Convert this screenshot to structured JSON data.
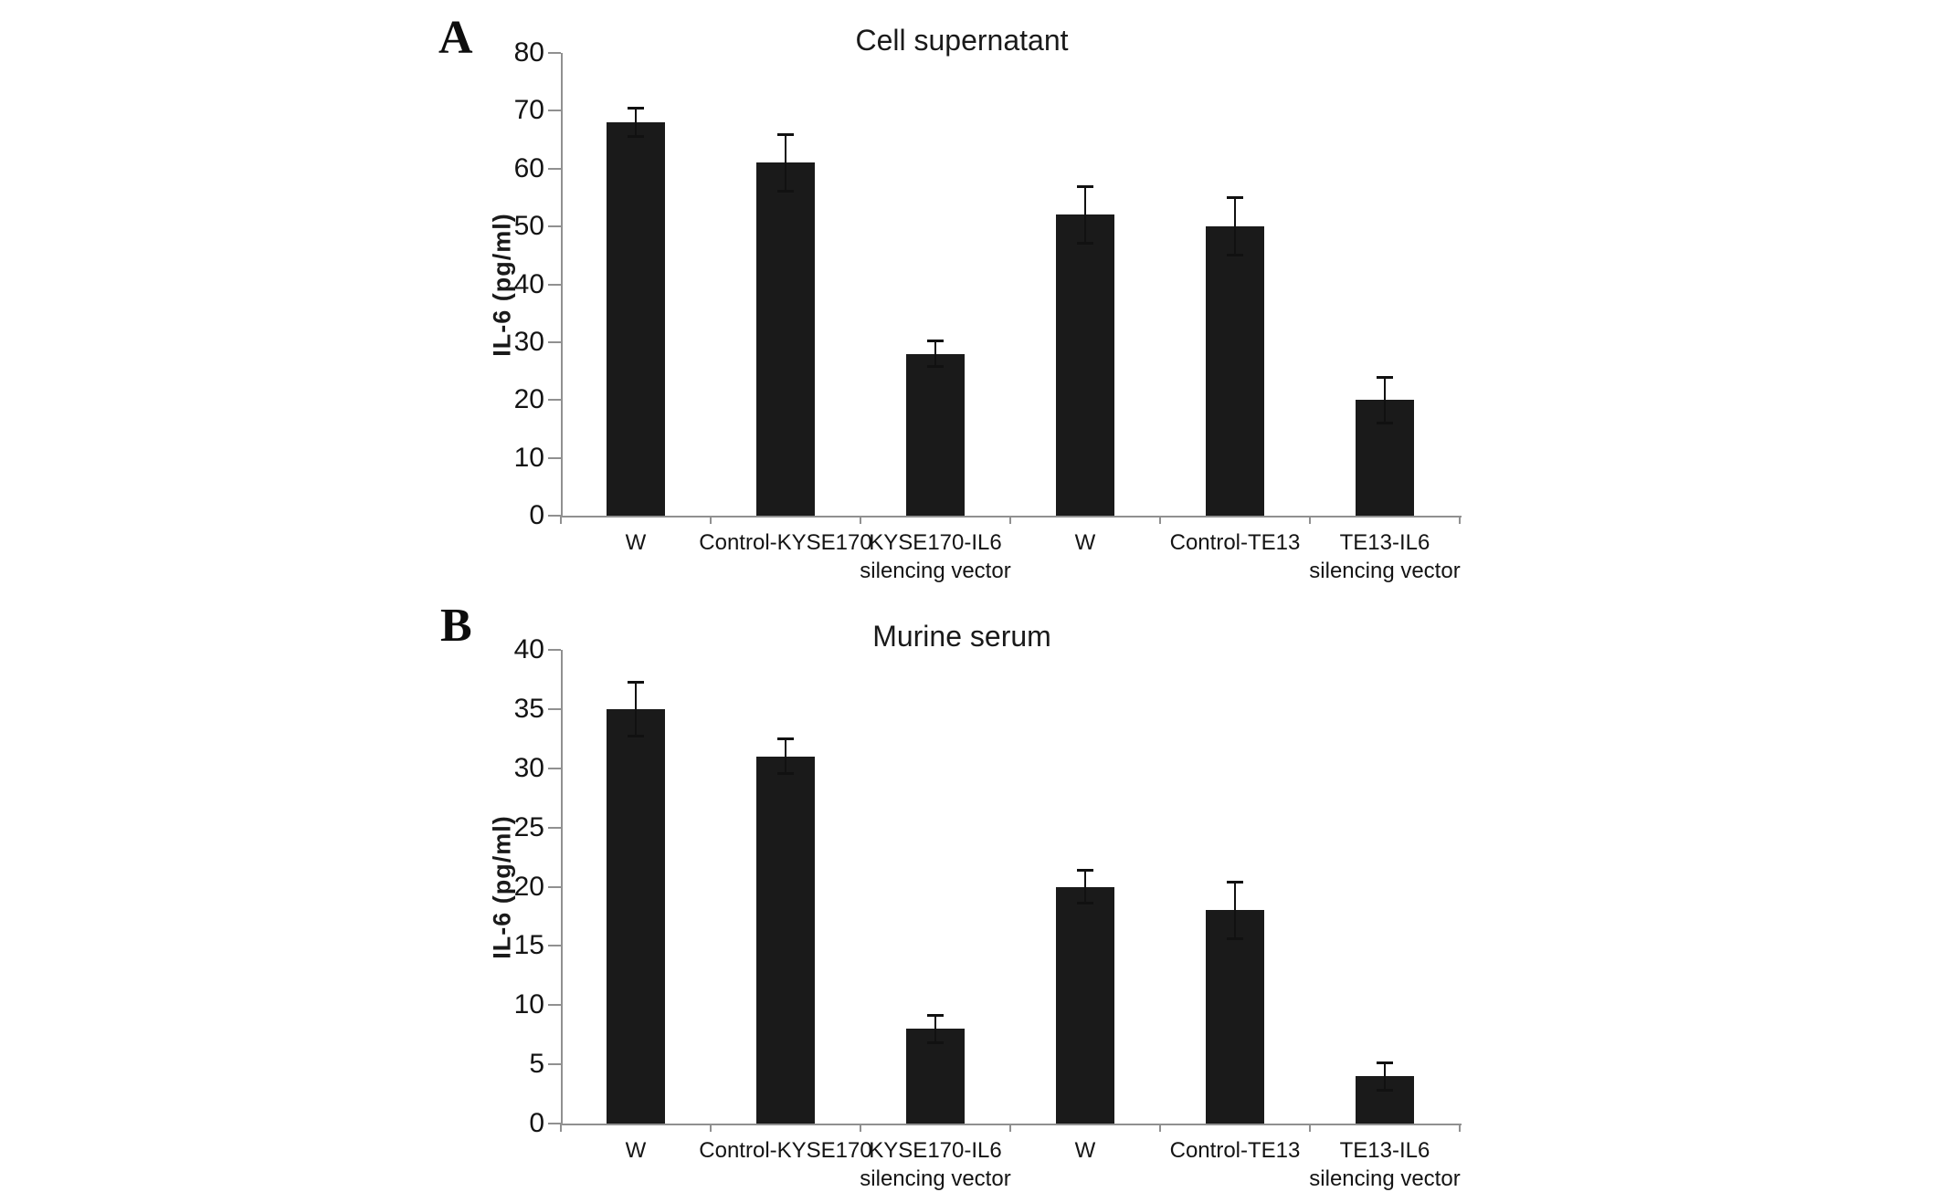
{
  "figure": {
    "background_color": "#ffffff",
    "bar_color": "#1a1a1a",
    "axis_color": "#909090",
    "text_color": "#141414"
  },
  "chart_data": [
    {
      "type": "bar",
      "panel": "A",
      "title": "Cell supernatant",
      "xlabel": "",
      "ylabel": "IL-6 (pg/ml)",
      "ylim": [
        0,
        80
      ],
      "ytick_step": 10,
      "yticks": [
        0,
        10,
        20,
        30,
        40,
        50,
        60,
        70,
        80
      ],
      "categories": [
        "W",
        "Control-KYSE170",
        "KYSE170-IL6\nsilencing vector",
        "W",
        "Control-TE13",
        "TE13-IL6\nsilencing vector"
      ],
      "values": [
        68,
        61,
        28,
        52,
        50,
        20
      ],
      "errors": [
        2.5,
        5,
        2.3,
        5,
        5,
        4
      ],
      "grid": false,
      "legend_position": "none",
      "bar_color": "#1a1a1a"
    },
    {
      "type": "bar",
      "panel": "B",
      "title": "Murine serum",
      "xlabel": "",
      "ylabel": "IL-6 (pg/ml)",
      "ylim": [
        0,
        40
      ],
      "ytick_step": 5,
      "yticks": [
        0,
        5,
        10,
        15,
        20,
        25,
        30,
        35,
        40
      ],
      "categories": [
        "W",
        "Control-KYSE170",
        "KYSE170-IL6\nsilencing vector",
        "W",
        "Control-TE13",
        "TE13-IL6\nsilencing vector"
      ],
      "values": [
        35,
        31,
        8,
        20,
        18,
        4
      ],
      "errors": [
        2.3,
        1.5,
        1.2,
        1.4,
        2.4,
        1.2
      ],
      "grid": false,
      "legend_position": "none",
      "bar_color": "#1a1a1a"
    }
  ]
}
